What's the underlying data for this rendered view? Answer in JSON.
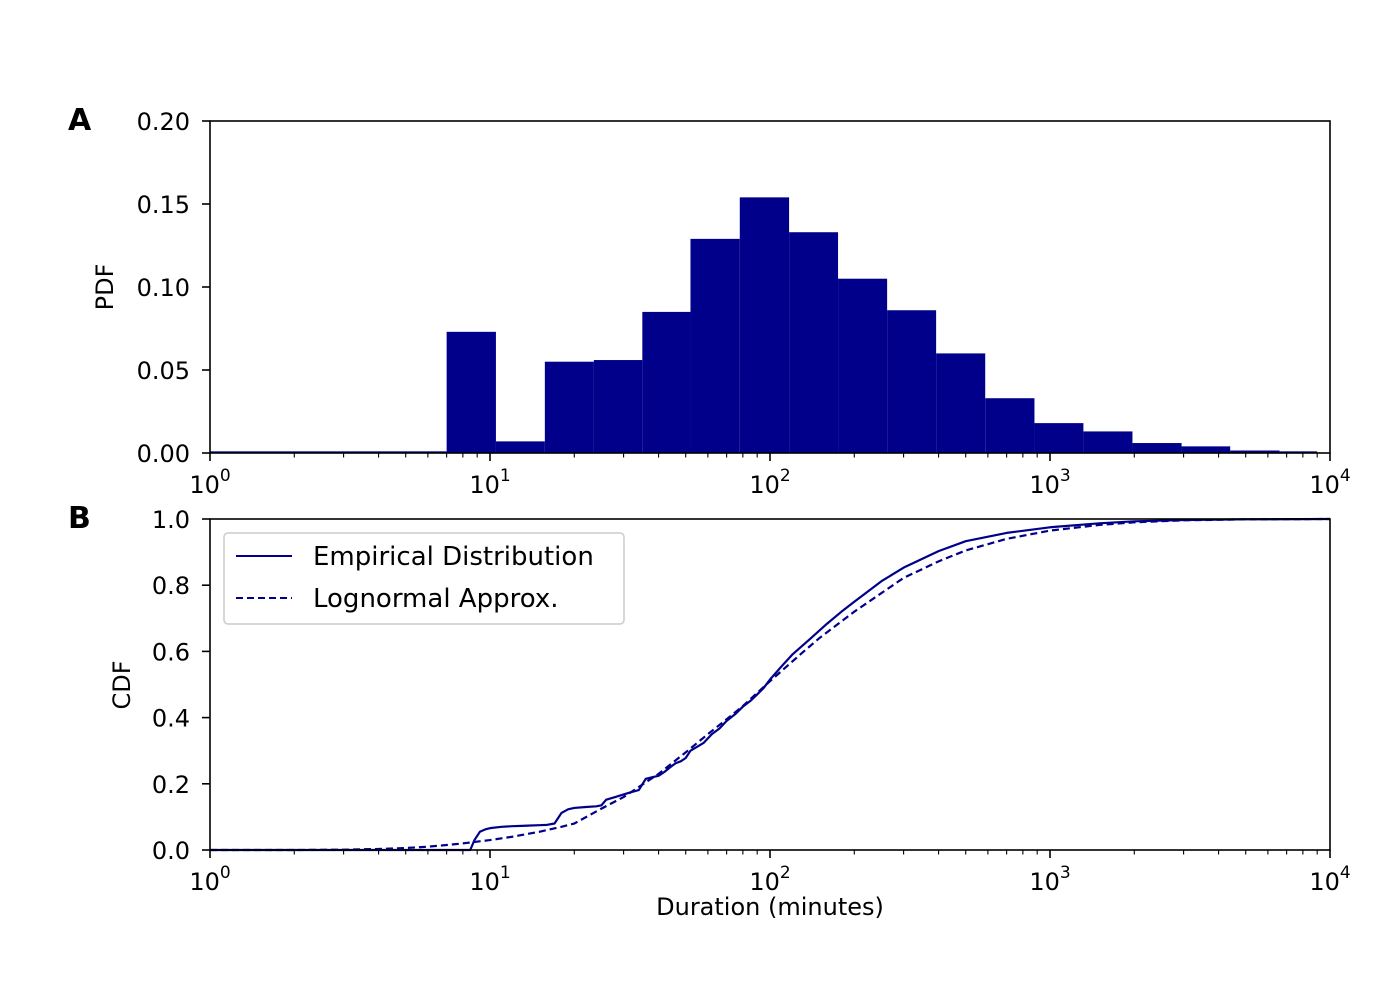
{
  "colors": {
    "series": "#00008b",
    "axis": "#000000",
    "legend_border": "#cccccc"
  },
  "chart_data": [
    {
      "type": "bar",
      "panel_label": "A",
      "title": "",
      "xlabel": "",
      "ylabel": "PDF",
      "xscale": "log",
      "xlim": [
        1,
        10000
      ],
      "ylim": [
        0,
        0.2
      ],
      "x_ticks": [
        {
          "base": "10",
          "exp": "0"
        },
        {
          "base": "10",
          "exp": "1"
        },
        {
          "base": "10",
          "exp": "2"
        },
        {
          "base": "10",
          "exp": "3"
        },
        {
          "base": "10",
          "exp": "4"
        }
      ],
      "y_ticks": [
        "0.00",
        "0.05",
        "0.10",
        "0.15",
        "0.20"
      ],
      "bins": [
        {
          "x0": 1,
          "x1": 7,
          "value": 0.001
        },
        {
          "x0": 7,
          "x1": 10.5,
          "value": 0.073
        },
        {
          "x0": 10.5,
          "x1": 15.7,
          "value": 0.007
        },
        {
          "x0": 15.7,
          "x1": 23.5,
          "value": 0.055
        },
        {
          "x0": 23.5,
          "x1": 35,
          "value": 0.056
        },
        {
          "x0": 35,
          "x1": 52,
          "value": 0.085
        },
        {
          "x0": 52,
          "x1": 78,
          "value": 0.129
        },
        {
          "x0": 78,
          "x1": 117,
          "value": 0.154
        },
        {
          "x0": 117,
          "x1": 175,
          "value": 0.133
        },
        {
          "x0": 175,
          "x1": 262,
          "value": 0.105
        },
        {
          "x0": 262,
          "x1": 392,
          "value": 0.086
        },
        {
          "x0": 392,
          "x1": 587,
          "value": 0.06
        },
        {
          "x0": 587,
          "x1": 880,
          "value": 0.033
        },
        {
          "x0": 880,
          "x1": 1316,
          "value": 0.018
        },
        {
          "x0": 1316,
          "x1": 1970,
          "value": 0.013
        },
        {
          "x0": 1970,
          "x1": 2950,
          "value": 0.006
        },
        {
          "x0": 2950,
          "x1": 4400,
          "value": 0.004
        },
        {
          "x0": 4400,
          "x1": 6600,
          "value": 0.0015
        },
        {
          "x0": 6600,
          "x1": 9000,
          "value": 0.001
        }
      ]
    },
    {
      "type": "line",
      "panel_label": "B",
      "title": "",
      "xlabel": "Duration (minutes)",
      "ylabel": "CDF",
      "xscale": "log",
      "xlim": [
        1,
        10000
      ],
      "ylim": [
        0,
        1
      ],
      "x_ticks": [
        {
          "base": "10",
          "exp": "0"
        },
        {
          "base": "10",
          "exp": "1"
        },
        {
          "base": "10",
          "exp": "2"
        },
        {
          "base": "10",
          "exp": "3"
        },
        {
          "base": "10",
          "exp": "4"
        }
      ],
      "y_ticks": [
        "0.0",
        "0.2",
        "0.4",
        "0.6",
        "0.8",
        "1.0"
      ],
      "legend": {
        "placement": "upper-left"
      },
      "series": [
        {
          "name": "Empirical Distribution",
          "style": "solid",
          "x": [
            1,
            8.5,
            8.8,
            9.2,
            9.6,
            10,
            11,
            12,
            13,
            14,
            15,
            16,
            17,
            18,
            19,
            20,
            22,
            24,
            25,
            26,
            28,
            30,
            32,
            34,
            36,
            38,
            40,
            42,
            44,
            46,
            48,
            50,
            52,
            55,
            58,
            62,
            66,
            70,
            75,
            80,
            85,
            90,
            95,
            100,
            110,
            120,
            140,
            160,
            180,
            200,
            250,
            300,
            400,
            500,
            700,
            1000,
            1500,
            2000,
            3000,
            5000,
            10000
          ],
          "y": [
            0.0,
            0.0,
            0.03,
            0.055,
            0.062,
            0.066,
            0.07,
            0.072,
            0.073,
            0.074,
            0.075,
            0.076,
            0.08,
            0.112,
            0.123,
            0.127,
            0.13,
            0.132,
            0.135,
            0.152,
            0.16,
            0.168,
            0.175,
            0.181,
            0.215,
            0.22,
            0.224,
            0.236,
            0.25,
            0.262,
            0.268,
            0.278,
            0.3,
            0.312,
            0.324,
            0.35,
            0.367,
            0.39,
            0.41,
            0.433,
            0.45,
            0.47,
            0.49,
            0.515,
            0.555,
            0.59,
            0.64,
            0.684,
            0.72,
            0.75,
            0.812,
            0.853,
            0.903,
            0.933,
            0.958,
            0.975,
            0.987,
            0.993,
            0.997,
            0.999,
            1.0
          ]
        },
        {
          "name": "Lognormal Approx.",
          "style": "dashed",
          "x": [
            1,
            2,
            3,
            4,
            5,
            6,
            7,
            8,
            10,
            12,
            15,
            18,
            20,
            25,
            30,
            40,
            50,
            60,
            70,
            80,
            100,
            130,
            150,
            200,
            300,
            400,
            500,
            700,
            1000,
            1500,
            2000,
            3000,
            5000,
            10000
          ],
          "y": [
            0.0,
            0.0,
            0.001,
            0.003,
            0.006,
            0.01,
            0.015,
            0.02,
            0.03,
            0.04,
            0.055,
            0.07,
            0.08,
            0.125,
            0.16,
            0.23,
            0.295,
            0.35,
            0.395,
            0.435,
            0.51,
            0.595,
            0.64,
            0.72,
            0.822,
            0.872,
            0.905,
            0.94,
            0.965,
            0.982,
            0.99,
            0.996,
            0.999,
            1.0
          ]
        }
      ]
    }
  ]
}
